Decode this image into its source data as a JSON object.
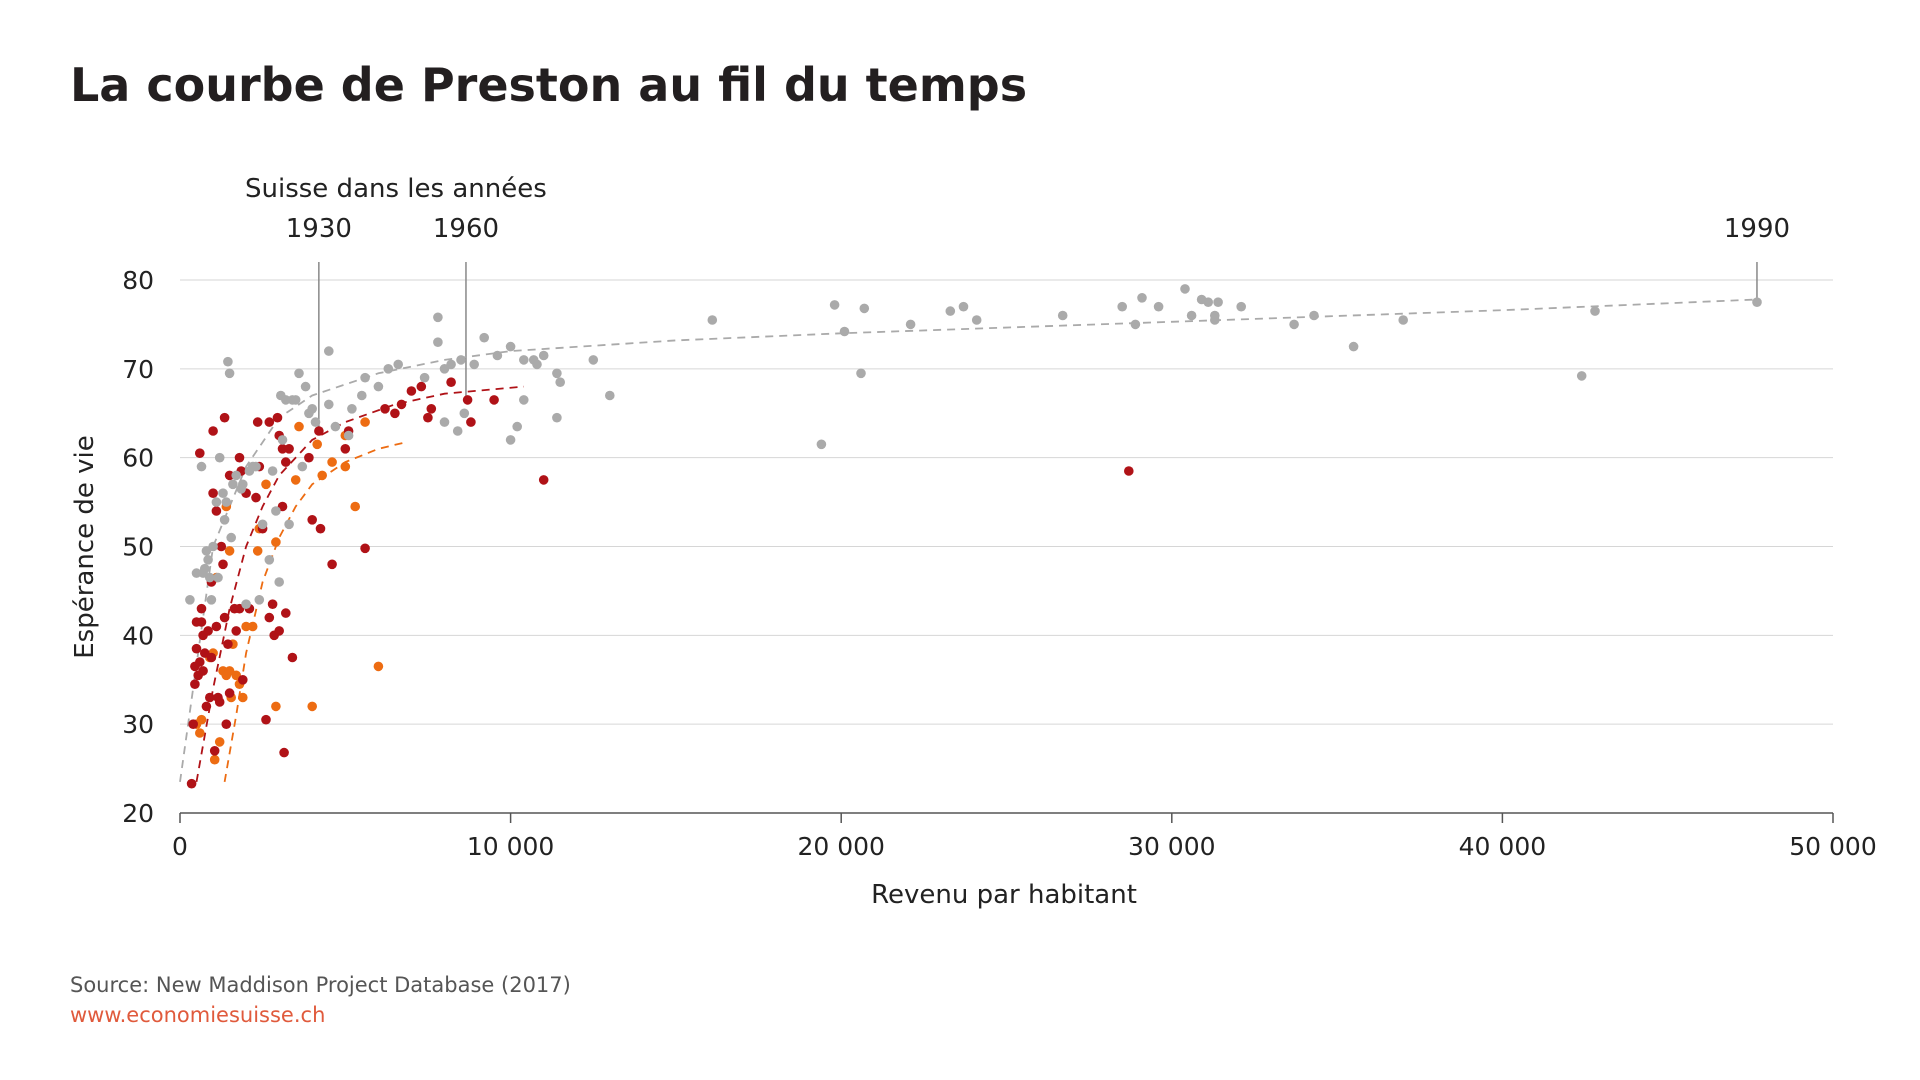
{
  "title": "La courbe de Preston au fil du temps",
  "footer": {
    "source": "Source: New Maddison Project Database (2017)",
    "website": "www.economiesuisse.ch"
  },
  "chart_data": {
    "type": "scatter",
    "title": "La courbe de Preston au fil du temps",
    "xlabel": "Revenu par habitant",
    "ylabel": "Espérance de vie",
    "xlim": [
      0,
      50000
    ],
    "ylim": [
      20,
      80
    ],
    "x_ticks": [
      0,
      10000,
      20000,
      30000,
      40000,
      50000
    ],
    "x_tick_labels": [
      "0",
      "10 000",
      "20 000",
      "30 000",
      "40 000",
      "50 000"
    ],
    "y_ticks": [
      20,
      30,
      40,
      50,
      60,
      70,
      80
    ],
    "y_tick_labels": [
      "20",
      "30",
      "40",
      "50",
      "60",
      "70",
      "80"
    ],
    "grid": "horizontal",
    "annotation_header": "Suisse dans les années",
    "annotations": [
      {
        "label": "1930",
        "x": 4200,
        "y": 63
      },
      {
        "label": "1960",
        "x": 8650,
        "y": 66.5
      },
      {
        "label": "1990",
        "x": 47700,
        "y": 77.5
      }
    ],
    "series": [
      {
        "color": "#ed6c12",
        "points": [
          [
            500,
            30
          ],
          [
            600,
            29
          ],
          [
            650,
            30.5
          ],
          [
            900,
            37.5
          ],
          [
            1000,
            38
          ],
          [
            1050,
            26
          ],
          [
            1100,
            46.5
          ],
          [
            1200,
            28
          ],
          [
            1300,
            36
          ],
          [
            1400,
            54.5
          ],
          [
            1400,
            35.5
          ],
          [
            1500,
            49.5
          ],
          [
            1500,
            36
          ],
          [
            1550,
            33
          ],
          [
            1600,
            39
          ],
          [
            1700,
            35.5
          ],
          [
            1800,
            34.5
          ],
          [
            1900,
            33
          ],
          [
            2000,
            41
          ],
          [
            2200,
            41
          ],
          [
            2350,
            49.5
          ],
          [
            2400,
            52
          ],
          [
            2600,
            57
          ],
          [
            2900,
            32
          ],
          [
            2900,
            50.5
          ],
          [
            3500,
            57.5
          ],
          [
            3600,
            63.5
          ],
          [
            4000,
            32
          ],
          [
            4150,
            61.5
          ],
          [
            4300,
            58
          ],
          [
            4600,
            59.5
          ],
          [
            5000,
            59
          ],
          [
            5000,
            62.5
          ],
          [
            5300,
            54.5
          ],
          [
            5600,
            64
          ],
          [
            6000,
            36.5
          ]
        ]
      },
      {
        "color": "#b01217",
        "points": [
          [
            350,
            23.3
          ],
          [
            400,
            30
          ],
          [
            450,
            34.5
          ],
          [
            450,
            36.5
          ],
          [
            500,
            38.5
          ],
          [
            500,
            41.5
          ],
          [
            550,
            35.5
          ],
          [
            600,
            60.5
          ],
          [
            600,
            37
          ],
          [
            650,
            43
          ],
          [
            650,
            41.5
          ],
          [
            700,
            40
          ],
          [
            700,
            36
          ],
          [
            750,
            38
          ],
          [
            800,
            32
          ],
          [
            850,
            40.5
          ],
          [
            900,
            33
          ],
          [
            950,
            37.5
          ],
          [
            950,
            46
          ],
          [
            1000,
            56
          ],
          [
            1000,
            63
          ],
          [
            1050,
            27
          ],
          [
            1100,
            41
          ],
          [
            1100,
            54
          ],
          [
            1150,
            33
          ],
          [
            1200,
            32.5
          ],
          [
            1250,
            50
          ],
          [
            1300,
            48
          ],
          [
            1350,
            42
          ],
          [
            1350,
            64.5
          ],
          [
            1400,
            30
          ],
          [
            1450,
            39
          ],
          [
            1500,
            33.5
          ],
          [
            1500,
            58
          ],
          [
            1650,
            43
          ],
          [
            1700,
            40.5
          ],
          [
            1800,
            43
          ],
          [
            1800,
            60
          ],
          [
            1850,
            58.5
          ],
          [
            1900,
            35
          ],
          [
            2000,
            56
          ],
          [
            2100,
            43
          ],
          [
            2300,
            55.5
          ],
          [
            2350,
            64
          ],
          [
            2400,
            59
          ],
          [
            2500,
            52
          ],
          [
            2600,
            30.5
          ],
          [
            2700,
            64
          ],
          [
            2700,
            42
          ],
          [
            2800,
            43.5
          ],
          [
            2850,
            40
          ],
          [
            2950,
            64.5
          ],
          [
            3000,
            40.5
          ],
          [
            3000,
            62.5
          ],
          [
            3100,
            54.5
          ],
          [
            3100,
            61
          ],
          [
            3150,
            26.8
          ],
          [
            3200,
            42.5
          ],
          [
            3200,
            59.5
          ],
          [
            3300,
            61
          ],
          [
            3400,
            37.5
          ],
          [
            3900,
            60
          ],
          [
            4000,
            53
          ],
          [
            4200,
            63
          ],
          [
            4250,
            52
          ],
          [
            4600,
            48
          ],
          [
            5000,
            61
          ],
          [
            5100,
            63
          ],
          [
            5600,
            49.8
          ],
          [
            6200,
            65.5
          ],
          [
            6500,
            65
          ],
          [
            6700,
            66
          ],
          [
            7000,
            67.5
          ],
          [
            7300,
            68
          ],
          [
            7500,
            64.5
          ],
          [
            7600,
            65.5
          ],
          [
            8200,
            68.5
          ],
          [
            8700,
            66.5
          ],
          [
            8800,
            64
          ],
          [
            9500,
            66.5
          ],
          [
            11000,
            57.5
          ],
          [
            28700,
            58.5
          ]
        ]
      },
      {
        "color": "#aaaaaa",
        "points": [
          [
            300,
            44
          ],
          [
            500,
            47
          ],
          [
            650,
            59
          ],
          [
            700,
            47
          ],
          [
            750,
            47.5
          ],
          [
            800,
            49.5
          ],
          [
            850,
            48.5
          ],
          [
            900,
            46.5
          ],
          [
            950,
            44
          ],
          [
            1000,
            50
          ],
          [
            1100,
            55
          ],
          [
            1150,
            46.5
          ],
          [
            1200,
            60
          ],
          [
            1300,
            56
          ],
          [
            1350,
            53
          ],
          [
            1400,
            55
          ],
          [
            1450,
            70.8
          ],
          [
            1500,
            69.5
          ],
          [
            1550,
            51
          ],
          [
            1600,
            57
          ],
          [
            1700,
            58
          ],
          [
            1850,
            56.5
          ],
          [
            1900,
            57
          ],
          [
            2000,
            43.5
          ],
          [
            2100,
            58.5
          ],
          [
            2200,
            59
          ],
          [
            2300,
            59
          ],
          [
            2400,
            44
          ],
          [
            2500,
            52.5
          ],
          [
            2700,
            48.5
          ],
          [
            2800,
            58.5
          ],
          [
            2900,
            54
          ],
          [
            3000,
            46
          ],
          [
            3050,
            67
          ],
          [
            3100,
            62
          ],
          [
            3200,
            66.5
          ],
          [
            3300,
            52.5
          ],
          [
            3400,
            66.5
          ],
          [
            3500,
            66.5
          ],
          [
            3600,
            69.5
          ],
          [
            3700,
            59
          ],
          [
            3800,
            68
          ],
          [
            3900,
            65
          ],
          [
            4000,
            65.5
          ],
          [
            4100,
            64
          ],
          [
            4500,
            72
          ],
          [
            4500,
            66
          ],
          [
            4700,
            63.5
          ],
          [
            5100,
            62.5
          ],
          [
            5200,
            65.5
          ],
          [
            5500,
            67
          ],
          [
            5600,
            69
          ],
          [
            6000,
            68
          ],
          [
            6300,
            70
          ],
          [
            6600,
            70.5
          ],
          [
            7400,
            69
          ],
          [
            7800,
            75.8
          ],
          [
            7800,
            73
          ],
          [
            8000,
            64
          ],
          [
            8000,
            70
          ],
          [
            8200,
            70.5
          ],
          [
            8400,
            63
          ],
          [
            8500,
            71
          ],
          [
            8600,
            65
          ],
          [
            8900,
            70.5
          ],
          [
            9200,
            73.5
          ],
          [
            9600,
            71.5
          ],
          [
            10000,
            62
          ],
          [
            10000,
            72.5
          ],
          [
            10200,
            63.5
          ],
          [
            10400,
            71
          ],
          [
            10400,
            66.5
          ],
          [
            10700,
            71
          ],
          [
            10800,
            70.5
          ],
          [
            11000,
            71.5
          ],
          [
            11400,
            64.5
          ],
          [
            11400,
            69.5
          ],
          [
            11500,
            68.5
          ],
          [
            12500,
            71
          ],
          [
            13000,
            67
          ],
          [
            16100,
            75.5
          ],
          [
            19400,
            61.5
          ],
          [
            19800,
            77.2
          ],
          [
            20100,
            74.2
          ],
          [
            20600,
            69.5
          ],
          [
            20700,
            76.8
          ],
          [
            22100,
            75
          ],
          [
            23300,
            76.5
          ],
          [
            23700,
            77
          ],
          [
            24100,
            75.5
          ],
          [
            26700,
            76
          ],
          [
            28500,
            77
          ],
          [
            28900,
            75
          ],
          [
            29100,
            78
          ],
          [
            29600,
            77
          ],
          [
            30400,
            79
          ],
          [
            30600,
            76
          ],
          [
            30900,
            77.8
          ],
          [
            31100,
            77.5
          ],
          [
            31300,
            76
          ],
          [
            31300,
            75.5
          ],
          [
            31400,
            77.5
          ],
          [
            32100,
            77
          ],
          [
            33700,
            75
          ],
          [
            34300,
            76
          ],
          [
            35500,
            72.5
          ],
          [
            37000,
            75.5
          ],
          [
            42400,
            69.2
          ],
          [
            42800,
            76.5
          ],
          [
            47700,
            77.5
          ]
        ]
      }
    ],
    "trend_lines": [
      {
        "color": "#aaaaaa",
        "points": [
          [
            0,
            23.5
          ],
          [
            1000,
            50
          ],
          [
            2000,
            59
          ],
          [
            3000,
            64.5
          ],
          [
            4000,
            67
          ],
          [
            6000,
            69.5
          ],
          [
            8000,
            71
          ],
          [
            10000,
            72
          ],
          [
            15000,
            73.2
          ],
          [
            20000,
            74
          ],
          [
            30000,
            75.3
          ],
          [
            40000,
            76.6
          ],
          [
            47700,
            77.8
          ]
        ]
      },
      {
        "color": "#b01217",
        "points": [
          [
            500,
            23.5
          ],
          [
            1000,
            34
          ],
          [
            1500,
            43
          ],
          [
            2000,
            50
          ],
          [
            2500,
            54.5
          ],
          [
            3000,
            58
          ],
          [
            4000,
            62
          ],
          [
            5000,
            64
          ],
          [
            6500,
            66
          ],
          [
            8000,
            67.2
          ],
          [
            10400,
            68
          ]
        ]
      },
      {
        "color": "#ed6c12",
        "points": [
          [
            1350,
            23.5
          ],
          [
            1700,
            31
          ],
          [
            2000,
            38
          ],
          [
            2500,
            46
          ],
          [
            3000,
            51
          ],
          [
            3500,
            54.5
          ],
          [
            4000,
            57
          ],
          [
            5000,
            59.5
          ],
          [
            6000,
            61
          ],
          [
            6900,
            61.8
          ]
        ]
      }
    ]
  }
}
